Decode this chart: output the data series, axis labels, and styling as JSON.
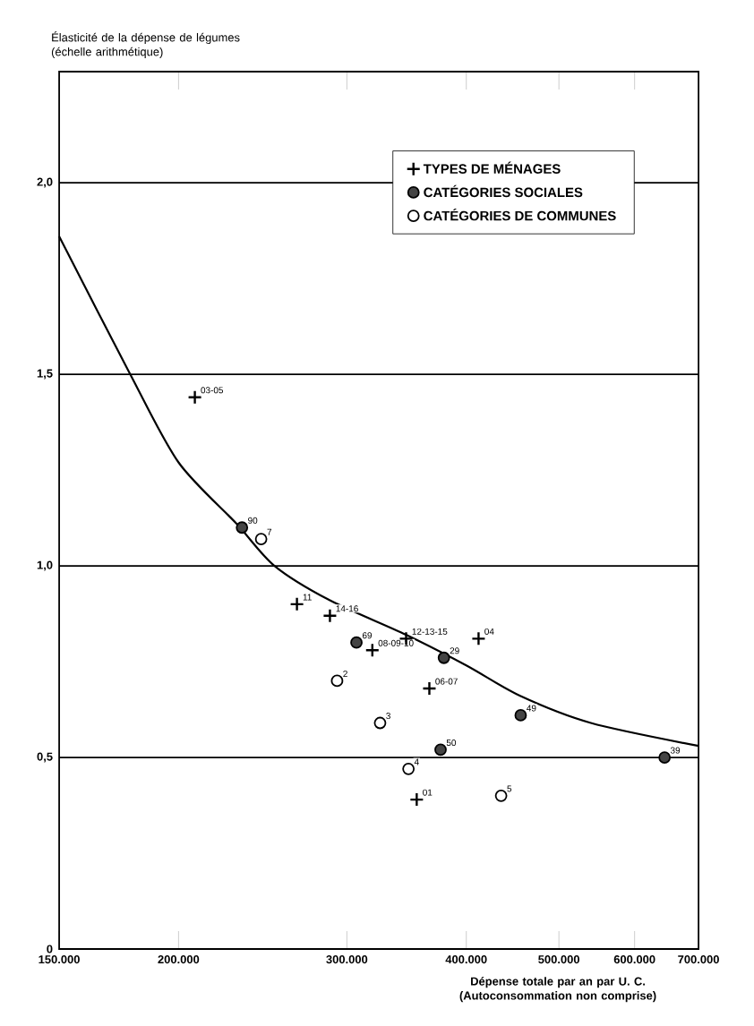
{
  "chart_data": {
    "type": "scatter",
    "ylabel": "Élasticité de la dépense de légumes (échelle arithmétique)",
    "xlabel": "Dépense totale par an par U. C. (Autoconsommation non comprise)",
    "log": "x",
    "xlim": [
      150000,
      700000
    ],
    "xticks": [
      {
        "value": 150000,
        "label": "150.000"
      },
      {
        "value": 200000,
        "label": "200.000"
      },
      {
        "value": 300000,
        "label": "300.000"
      },
      {
        "value": 400000,
        "label": "400.000"
      },
      {
        "value": 500000,
        "label": "500.000"
      },
      {
        "value": 600000,
        "label": "600.000"
      },
      {
        "value": 700000,
        "label": "700.000"
      }
    ],
    "ylim": [
      0,
      2.29
    ],
    "yticks": [
      0,
      {
        "value": 0.5,
        "label": "0,5"
      },
      {
        "value": 1.0,
        "label": "1,0"
      },
      {
        "value": 1.5,
        "label": "1,5"
      },
      {
        "value": 2.0,
        "label": "2,0"
      }
    ],
    "grid": "y",
    "legend": "top right",
    "series": [
      {
        "name": "TYPES DE MÉNAGES",
        "marker": "cross",
        "color": "#000000",
        "x": [
          208000,
          266000,
          288000,
          319000,
          346000,
          366000,
          412000,
          355000
        ],
        "values": [
          1.44,
          0.9,
          0.87,
          0.78,
          0.81,
          0.68,
          0.81,
          0.39
        ]
      },
      {
        "name": "CATÉGORIES SOCIALES",
        "marker": "circle",
        "color": "#444444",
        "x": [
          233000,
          307000,
          379000,
          456000,
          376000,
          645000
        ],
        "values": [
          1.1,
          0.8,
          0.76,
          0.61,
          0.52,
          0.5
        ]
      },
      {
        "name": "CATÉGORIES DE COMMUNES",
        "marker": "circle",
        "color": "#ffffff",
        "x": [
          244000,
          293000,
          325000,
          348000,
          435000
        ],
        "values": [
          1.07,
          0.7,
          0.59,
          0.47,
          0.4
        ]
      },
      {
        "type": "line",
        "marker": "none",
        "color": "#000000",
        "x": [
          150000,
          178000,
          200000,
          230000,
          252000,
          288000,
          346000,
          400000,
          456000,
          540000,
          700000
        ],
        "values": [
          1.86,
          1.5,
          1.27,
          1.11,
          1.0,
          0.91,
          0.82,
          0.74,
          0.66,
          0.59,
          0.53
        ]
      }
    ],
    "annotations": [
      {
        "text": "03-05",
        "x": 208000,
        "y": 1.44
      },
      {
        "text": "11",
        "x": 266000,
        "y": 0.9
      },
      {
        "text": "14-16",
        "x": 288000,
        "y": 0.87
      },
      {
        "text": "08-09-10",
        "x": 319000,
        "y": 0.78
      },
      {
        "text": "12-13-15",
        "x": 346000,
        "y": 0.81
      },
      {
        "text": "06-07",
        "x": 366000,
        "y": 0.68
      },
      {
        "text": "04",
        "x": 412000,
        "y": 0.81
      },
      {
        "text": "01",
        "x": 355000,
        "y": 0.39
      },
      {
        "text": "90",
        "x": 233000,
        "y": 1.1
      },
      {
        "text": "69",
        "x": 307000,
        "y": 0.8
      },
      {
        "text": "29",
        "x": 379000,
        "y": 0.76
      },
      {
        "text": "49",
        "x": 456000,
        "y": 0.61
      },
      {
        "text": "50",
        "x": 376000,
        "y": 0.52
      },
      {
        "text": "39",
        "x": 645000,
        "y": 0.5
      },
      {
        "text": "7",
        "x": 244000,
        "y": 1.07
      },
      {
        "text": "2",
        "x": 293000,
        "y": 0.7
      },
      {
        "text": "3",
        "x": 325000,
        "y": 0.59
      },
      {
        "text": "4",
        "x": 348000,
        "y": 0.47
      },
      {
        "text": "5",
        "x": 435000,
        "y": 0.4
      }
    ]
  }
}
